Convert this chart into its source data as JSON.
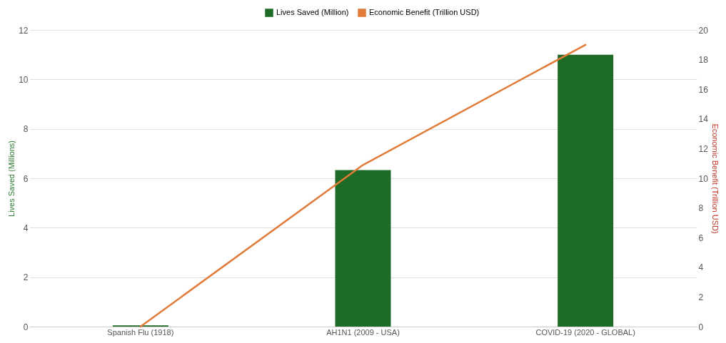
{
  "chart_data": {
    "type": "bar",
    "categories": [
      "Spanish Flu (1918)",
      "AH1N1 (2009 - USA)",
      "COVID-19 (2020 - GLOBAL)"
    ],
    "series": [
      {
        "name": "Lives Saved (Million)",
        "color": "#1e6b27",
        "values": [
          0.05,
          6.33,
          11.0
        ]
      },
      {
        "name": "Economic Benefit (Trillion USD)",
        "type": "line",
        "axis": "y2",
        "color": "#e07b39",
        "values": [
          0,
          10.9,
          19.0
        ]
      }
    ],
    "ylabel": "Lives Saved (Millions)",
    "y2label": "Economic Benefit (Trillion USD)",
    "ylim": [
      0,
      12
    ],
    "yticks": [
      0,
      2,
      4,
      6,
      8,
      10,
      12
    ],
    "y2lim": [
      0,
      20
    ],
    "y2ticks": [
      0,
      2,
      4,
      6,
      8,
      10,
      12,
      14,
      16,
      18,
      20
    ],
    "grid": "y",
    "legend": "top"
  }
}
